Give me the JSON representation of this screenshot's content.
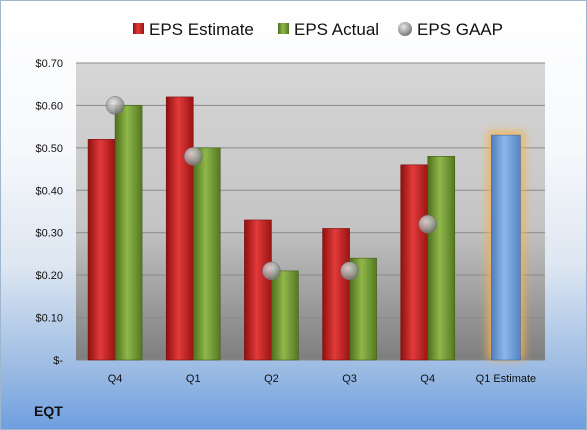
{
  "company": "EQT",
  "colors": {
    "estimate": "#d52a2a",
    "actual": "#7aa13a",
    "gaap": "#a8a8a8",
    "forecast": "#6f9fdc",
    "forecast_glow": "#f6b24e"
  },
  "chart_data": {
    "type": "bar",
    "categories": [
      "Q4",
      "Q1",
      "Q2",
      "Q3",
      "Q4",
      "Q1 Estimate"
    ],
    "series": [
      {
        "name": "EPS Estimate",
        "values": [
          0.52,
          0.62,
          0.33,
          0.31,
          0.46,
          null
        ]
      },
      {
        "name": "EPS Actual",
        "values": [
          0.6,
          0.5,
          0.21,
          0.24,
          0.48,
          null
        ]
      },
      {
        "name": "EPS GAAP",
        "type": "scatter",
        "values": [
          0.6,
          0.48,
          0.21,
          0.21,
          0.32,
          null
        ]
      }
    ],
    "forecast": {
      "category": "Q1 Estimate",
      "value": 0.53
    },
    "yticks": [
      "$0.70",
      "$0.60",
      "$0.50",
      "$0.40",
      "$0.30",
      "$0.20",
      "$0.10",
      "$-"
    ],
    "ylim": [
      0,
      0.7
    ],
    "grid": true,
    "legend_position": "top"
  }
}
